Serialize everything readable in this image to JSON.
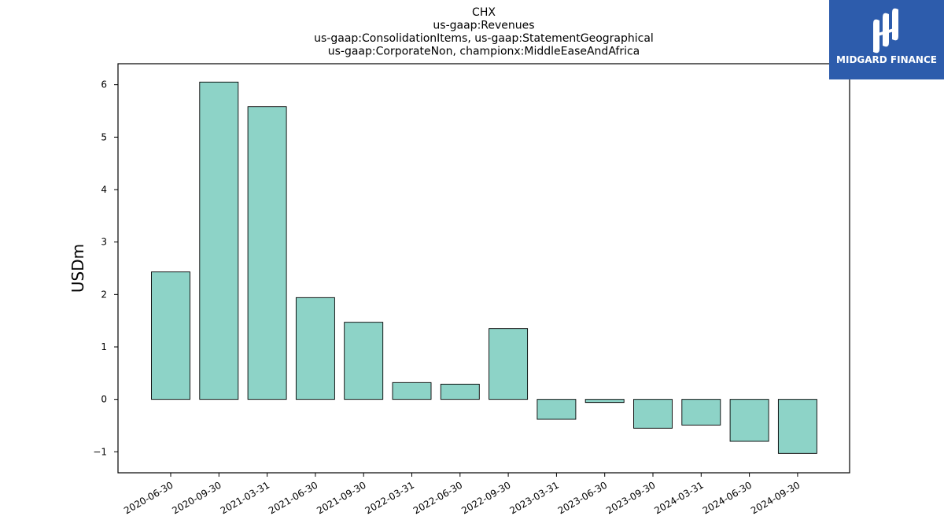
{
  "chart_data": {
    "type": "bar",
    "title_lines": [
      "CHX",
      "us-gaap:Revenues",
      "us-gaap:ConsolidationItems, us-gaap:StatementGeographical",
      "us-gaap:CorporateNon, championx:MiddleEaseAndAfrica"
    ],
    "ylabel": "USDm",
    "xlabel": "",
    "categories": [
      "2020-06-30",
      "2020-09-30",
      "2021-03-31",
      "2021-06-30",
      "2021-09-30",
      "2022-03-31",
      "2022-06-30",
      "2022-09-30",
      "2023-03-31",
      "2023-06-30",
      "2023-09-30",
      "2024-03-31",
      "2024-06-30",
      "2024-09-30"
    ],
    "values": [
      2.43,
      6.05,
      5.58,
      1.94,
      1.47,
      0.32,
      0.29,
      1.35,
      -0.38,
      -0.06,
      -0.55,
      -0.49,
      -0.8,
      -1.03
    ],
    "ylim": [
      -1.4,
      6.4
    ],
    "yticks": [
      -1,
      0,
      1,
      2,
      3,
      4,
      5,
      6
    ],
    "ytick_labels": [
      "−1",
      "0",
      "1",
      "2",
      "3",
      "4",
      "5",
      "6"
    ],
    "bar_color": "#8dd3c7",
    "edge_color": "#000000",
    "grid": false
  },
  "logo": {
    "text": "MIDGARD FINANCE",
    "bg_color": "#2d5cac"
  }
}
